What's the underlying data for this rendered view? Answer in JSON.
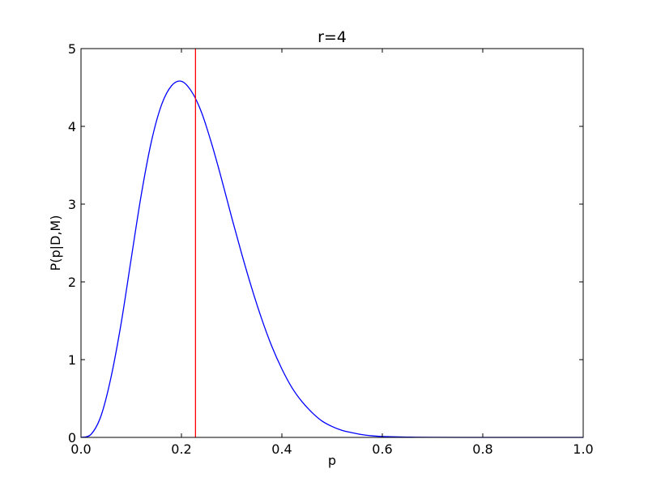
{
  "chart_data": {
    "type": "line",
    "title": "r=4",
    "xlabel": "p",
    "ylabel": "P(p|D,M)",
    "xlim": [
      0.0,
      1.0
    ],
    "ylim": [
      0,
      5
    ],
    "xticks": [
      "0.0",
      "0.2",
      "0.4",
      "0.6",
      "0.8",
      "1.0"
    ],
    "yticks": [
      "0",
      "1",
      "2",
      "3",
      "4",
      "5"
    ],
    "grid": false,
    "legend": "none",
    "series": [
      {
        "color": "#0000ff",
        "x": [
          0.0,
          0.02,
          0.04,
          0.06,
          0.08,
          0.1,
          0.12,
          0.14,
          0.16,
          0.18,
          0.2,
          0.22,
          0.24,
          0.26,
          0.28,
          0.3,
          0.32,
          0.34,
          0.36,
          0.38,
          0.4,
          0.42,
          0.44,
          0.46,
          0.48,
          0.5,
          0.52,
          0.54,
          0.56,
          0.58,
          0.6,
          0.65,
          0.7,
          0.8,
          0.9,
          1.0
        ],
        "values": [
          0.0,
          0.04,
          0.28,
          0.78,
          1.47,
          2.3,
          3.12,
          3.8,
          4.27,
          4.52,
          4.58,
          4.45,
          4.18,
          3.78,
          3.32,
          2.83,
          2.36,
          1.92,
          1.52,
          1.17,
          0.88,
          0.64,
          0.46,
          0.32,
          0.21,
          0.14,
          0.09,
          0.06,
          0.035,
          0.02,
          0.012,
          0.004,
          0.001,
          0.0,
          0.0,
          0.0
        ]
      }
    ],
    "vline": {
      "x": 0.228,
      "color": "#ff0000"
    }
  }
}
